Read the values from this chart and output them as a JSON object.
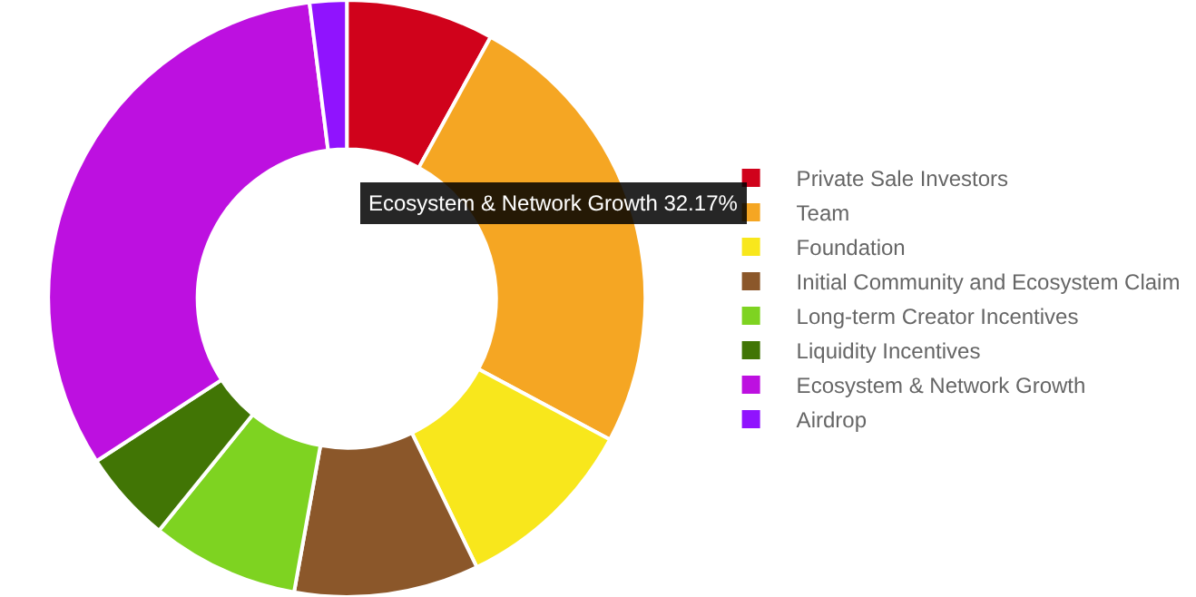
{
  "chart_data": {
    "type": "donut",
    "categories": [
      "Private Sale Investors",
      "Team",
      "Foundation",
      "Initial Community and Ecosystem Claim",
      "Long-term Creator Incentives",
      "Liquidity Incentives",
      "Ecosystem & Network Growth",
      "Airdrop"
    ],
    "values": [
      8,
      24.83,
      10,
      10,
      8,
      5,
      32.17,
      2
    ],
    "colors": [
      "#d0021b",
      "#f5a623",
      "#f8e71c",
      "#8b572a",
      "#7ed321",
      "#417505",
      "#bd10e0",
      "#9013fe"
    ],
    "annotations": [
      "Ecosystem & Network Growth 32.17%"
    ],
    "legend": "right"
  }
}
